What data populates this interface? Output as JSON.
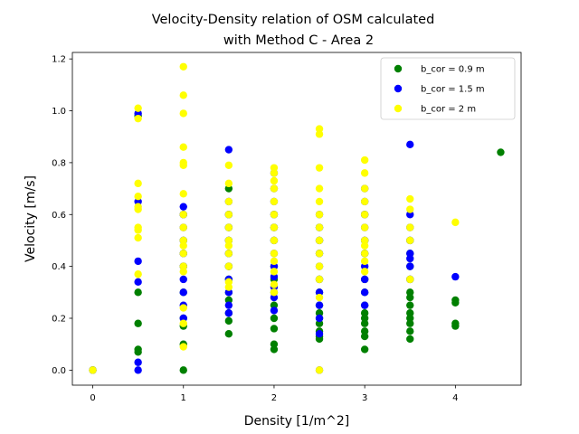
{
  "chart_data": {
    "type": "scatter",
    "title_line1": "Velocity-Density relation of OSM calculated",
    "title_line2": "with Method C - Area 2",
    "xlabel": "Density [1/m^2]",
    "ylabel": "Velocity [m/s]",
    "xlim": [
      -0.225,
      4.725
    ],
    "ylim": [
      -0.058,
      1.225
    ],
    "xticks": [
      0,
      1,
      2,
      3,
      4
    ],
    "yticks": [
      0.0,
      0.2,
      0.4,
      0.6,
      0.8,
      1.0,
      1.2
    ],
    "grid": false,
    "legend_position": "top-right",
    "series": [
      {
        "name": "b_cor = 0.9 m",
        "color": "#008000",
        "x": [
          0,
          0.5,
          0.5,
          0.5,
          0.5,
          0.5,
          1,
          1,
          1,
          1,
          1,
          1,
          1,
          1,
          1,
          1.5,
          1.5,
          1.5,
          1.5,
          1.5,
          1.5,
          1.5,
          1.5,
          1.5,
          1.5,
          1.5,
          1.5,
          2,
          2,
          2,
          2,
          2,
          2,
          2,
          2,
          2,
          2,
          2,
          2.5,
          2.5,
          2.5,
          2.5,
          2.5,
          2.5,
          2.5,
          2.5,
          2.5,
          2.5,
          2.5,
          2.5,
          3,
          3,
          3,
          3,
          3,
          3,
          3,
          3,
          3,
          3,
          3,
          3,
          3.5,
          3.5,
          3.5,
          3.5,
          3.5,
          3.5,
          3.5,
          3.5,
          3.5,
          3.5,
          3.5,
          3.5,
          4,
          4,
          4,
          4,
          4.5
        ],
        "y": [
          0.0,
          0.07,
          0.08,
          0.18,
          0.3,
          0.98,
          0.0,
          0.1,
          0.17,
          0.2,
          0.3,
          0.4,
          0.45,
          0.5,
          0.6,
          0.14,
          0.19,
          0.22,
          0.27,
          0.3,
          0.35,
          0.4,
          0.45,
          0.5,
          0.55,
          0.6,
          0.7,
          0.08,
          0.1,
          0.16,
          0.2,
          0.25,
          0.3,
          0.35,
          0.4,
          0.5,
          0.55,
          0.6,
          0.12,
          0.13,
          0.15,
          0.18,
          0.2,
          0.22,
          0.25,
          0.3,
          0.35,
          0.45,
          0.5,
          0.55,
          0.08,
          0.13,
          0.15,
          0.18,
          0.2,
          0.22,
          0.25,
          0.3,
          0.35,
          0.45,
          0.5,
          0.6,
          0.12,
          0.15,
          0.18,
          0.2,
          0.22,
          0.25,
          0.28,
          0.3,
          0.35,
          0.4,
          0.45,
          0.5,
          0.17,
          0.18,
          0.26,
          0.27,
          0.84
        ]
      },
      {
        "name": "b_cor = 1.5 m",
        "color": "#0000ff",
        "x": [
          0,
          0.5,
          0.5,
          0.5,
          0.5,
          0.5,
          0.5,
          1,
          1,
          1,
          1,
          1,
          1,
          1,
          1,
          1,
          1,
          1.5,
          1.5,
          1.5,
          1.5,
          1.5,
          1.5,
          1.5,
          1.5,
          1.5,
          1.5,
          1.5,
          2,
          2,
          2,
          2,
          2,
          2,
          2,
          2,
          2,
          2,
          2,
          2,
          2.5,
          2.5,
          2.5,
          2.5,
          2.5,
          2.5,
          2.5,
          2.5,
          2.5,
          2.5,
          2.5,
          3,
          3,
          3,
          3,
          3,
          3,
          3,
          3,
          3,
          3,
          3.5,
          3.5,
          3.5,
          3.5,
          3.5,
          3.5,
          3.5,
          3.5,
          4
        ],
        "y": [
          0.0,
          0.0,
          0.03,
          0.34,
          0.42,
          0.65,
          0.99,
          0.2,
          0.25,
          0.3,
          0.35,
          0.4,
          0.45,
          0.5,
          0.55,
          0.6,
          0.63,
          0.22,
          0.25,
          0.3,
          0.35,
          0.4,
          0.45,
          0.5,
          0.55,
          0.6,
          0.65,
          0.85,
          0.23,
          0.28,
          0.32,
          0.36,
          0.4,
          0.45,
          0.5,
          0.55,
          0.6,
          0.65,
          0.7,
          0.76,
          0.0,
          0.14,
          0.2,
          0.25,
          0.3,
          0.35,
          0.4,
          0.45,
          0.5,
          0.55,
          0.6,
          0.25,
          0.3,
          0.35,
          0.4,
          0.45,
          0.5,
          0.55,
          0.6,
          0.65,
          0.7,
          0.35,
          0.4,
          0.43,
          0.45,
          0.5,
          0.55,
          0.6,
          0.87,
          0.36
        ]
      },
      {
        "name": "b_cor = 2 m",
        "color": "#ffff00",
        "x": [
          0,
          0.5,
          0.5,
          0.5,
          0.5,
          0.5,
          0.5,
          0.5,
          0.5,
          0.5,
          0.5,
          1,
          1,
          1,
          1,
          1,
          1,
          1,
          1,
          1,
          1,
          1,
          1,
          1,
          1,
          1,
          1,
          1,
          1.5,
          1.5,
          1.5,
          1.5,
          1.5,
          1.5,
          1.5,
          1.5,
          1.5,
          1.5,
          1.5,
          2,
          2,
          2,
          2,
          2,
          2,
          2,
          2,
          2,
          2,
          2,
          2,
          2,
          2.5,
          2.5,
          2.5,
          2.5,
          2.5,
          2.5,
          2.5,
          2.5,
          2.5,
          2.5,
          2.5,
          2.5,
          2.5,
          3,
          3,
          3,
          3,
          3,
          3,
          3,
          3,
          3,
          3,
          3,
          3.5,
          3.5,
          3.5,
          3.5,
          3.5,
          4
        ],
        "y": [
          0.0,
          0.37,
          0.51,
          0.54,
          0.55,
          0.62,
          0.63,
          0.67,
          0.72,
          0.97,
          1.01,
          0.09,
          0.18,
          0.24,
          0.38,
          0.4,
          0.45,
          0.48,
          0.5,
          0.55,
          0.6,
          0.68,
          0.79,
          0.8,
          0.86,
          0.99,
          1.06,
          1.17,
          0.32,
          0.34,
          0.4,
          0.45,
          0.48,
          0.5,
          0.55,
          0.6,
          0.65,
          0.72,
          0.79,
          0.3,
          0.33,
          0.38,
          0.42,
          0.45,
          0.5,
          0.55,
          0.6,
          0.65,
          0.7,
          0.73,
          0.76,
          0.78,
          0.0,
          0.28,
          0.35,
          0.4,
          0.45,
          0.5,
          0.55,
          0.6,
          0.65,
          0.7,
          0.78,
          0.91,
          0.93,
          0.38,
          0.42,
          0.45,
          0.48,
          0.5,
          0.55,
          0.6,
          0.65,
          0.7,
          0.76,
          0.81,
          0.35,
          0.5,
          0.55,
          0.62,
          0.66,
          0.57
        ]
      }
    ]
  }
}
